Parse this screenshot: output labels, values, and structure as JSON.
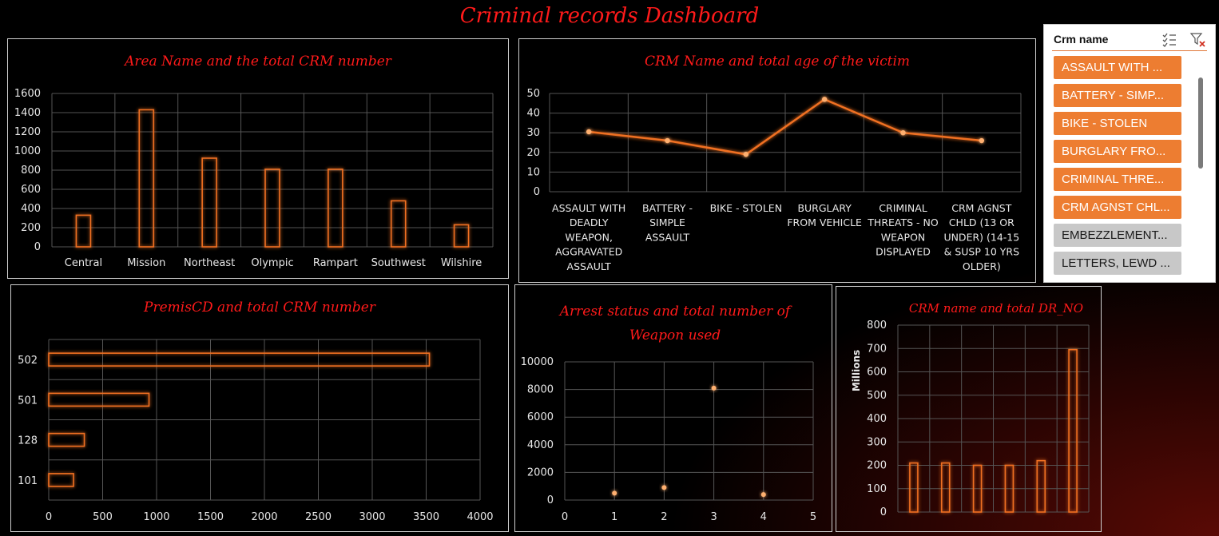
{
  "dashboard_title": "Criminal records Dashboard",
  "colors": {
    "accent": "#f07020",
    "title_red": "#ff1a1a",
    "slicer_selected": "#ed7d31",
    "slicer_unselected": "#c8c8c8",
    "grid": "#555555"
  },
  "slicer": {
    "title": "Crm name",
    "icons": [
      "multi-select-icon",
      "clear-filter-icon"
    ],
    "items": [
      {
        "label": "ASSAULT WITH ...",
        "selected": true
      },
      {
        "label": "BATTERY - SIMP...",
        "selected": true
      },
      {
        "label": "BIKE - STOLEN",
        "selected": true
      },
      {
        "label": "BURGLARY FRO...",
        "selected": true
      },
      {
        "label": "CRIMINAL THRE...",
        "selected": true
      },
      {
        "label": "CRM AGNST CHL...",
        "selected": true
      },
      {
        "label": "EMBEZZLEMENT...",
        "selected": false
      },
      {
        "label": "LETTERS, LEWD  ...",
        "selected": false
      }
    ]
  },
  "chart_data": [
    {
      "id": "area",
      "type": "bar",
      "title": "Area Name and the total CRM number",
      "categories": [
        "Central",
        "Mission",
        "Northeast",
        "Olympic",
        "Rampart",
        "Southwest",
        "Wilshire"
      ],
      "values": [
        330,
        1430,
        925,
        810,
        810,
        480,
        230
      ],
      "ylim": [
        0,
        1600
      ],
      "yticks": [
        0,
        200,
        400,
        600,
        800,
        1000,
        1200,
        1400,
        1600
      ],
      "grid": true
    },
    {
      "id": "age",
      "type": "line",
      "title": "CRM Name and total age of the victim",
      "categories": [
        [
          "ASSAULT WITH",
          "DEADLY",
          "WEAPON,",
          "AGGRAVATED",
          "ASSAULT"
        ],
        [
          "BATTERY -",
          "SIMPLE",
          "ASSAULT"
        ],
        [
          "BIKE - STOLEN"
        ],
        [
          "BURGLARY",
          "FROM VEHICLE"
        ],
        [
          "CRIMINAL",
          "THREATS - NO",
          "WEAPON",
          "DISPLAYED"
        ],
        [
          "CRM AGNST",
          "CHLD (13 OR",
          "UNDER) (14-15",
          "& SUSP 10 YRS",
          "OLDER)"
        ]
      ],
      "values": [
        30.5,
        26,
        19,
        47,
        30,
        26
      ],
      "ylim": [
        0,
        50
      ],
      "yticks": [
        0,
        10,
        20,
        30,
        40,
        50
      ],
      "grid": true
    },
    {
      "id": "premis",
      "type": "bar",
      "orientation": "horizontal",
      "title": "PremisCD and total CRM number",
      "categories": [
        "502",
        "501",
        "128",
        "101"
      ],
      "values": [
        3530,
        930,
        330,
        230
      ],
      "xlim": [
        0,
        4000
      ],
      "xticks": [
        0,
        500,
        1000,
        1500,
        2000,
        2500,
        3000,
        3500,
        4000
      ],
      "grid": true
    },
    {
      "id": "arrest",
      "type": "scatter",
      "title": "Arrest status and total number of Weapon used",
      "points": [
        {
          "x": 1,
          "y": 500
        },
        {
          "x": 2,
          "y": 900
        },
        {
          "x": 3,
          "y": 8100
        },
        {
          "x": 4,
          "y": 400
        }
      ],
      "xlim": [
        0,
        5
      ],
      "ylim": [
        0,
        10000
      ],
      "xticks": [
        0,
        1,
        2,
        3,
        4,
        5
      ],
      "yticks": [
        0,
        2000,
        4000,
        6000,
        8000,
        10000
      ],
      "grid": true
    },
    {
      "id": "drno",
      "type": "bar",
      "title": "CRM name and total DR_NO",
      "ylabel": "Millions",
      "values": [
        210,
        210,
        200,
        200,
        220,
        695
      ],
      "ylim": [
        0,
        800
      ],
      "yticks": [
        0,
        100,
        200,
        300,
        400,
        500,
        600,
        700,
        800
      ],
      "grid": true
    }
  ]
}
